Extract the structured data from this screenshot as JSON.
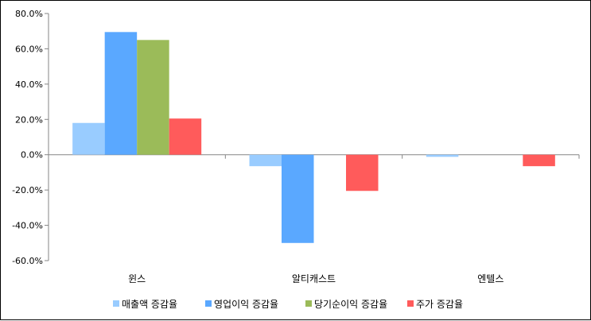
{
  "chart_data": {
    "type": "bar",
    "categories": [
      "윈스",
      "알티캐스트",
      "엔텔스"
    ],
    "series": [
      {
        "name": "매출액 증감율",
        "color": "#99ccff",
        "values": [
          18.0,
          -6.5,
          -1.2
        ]
      },
      {
        "name": "영업이익 증감율",
        "color": "#5aa8ff",
        "values": [
          69.5,
          -50.0,
          0.0
        ]
      },
      {
        "name": "당기순이익 증감율",
        "color": "#9bbb59",
        "values": [
          65.0,
          0.0,
          0.0
        ]
      },
      {
        "name": "주가 증감율",
        "color": "#ff5b5b",
        "values": [
          20.5,
          -20.5,
          -6.5
        ]
      }
    ],
    "ylim": [
      -60,
      80
    ],
    "yticks": [
      80,
      60,
      40,
      20,
      0,
      -20,
      -40,
      -60
    ],
    "ytick_labels": [
      "80.0%",
      "60.0%",
      "40.0%",
      "20.0%",
      "0.0%",
      "-20.0%",
      "-40.0%",
      "-60.0%"
    ],
    "grid": false,
    "legend_position": "bottom"
  }
}
